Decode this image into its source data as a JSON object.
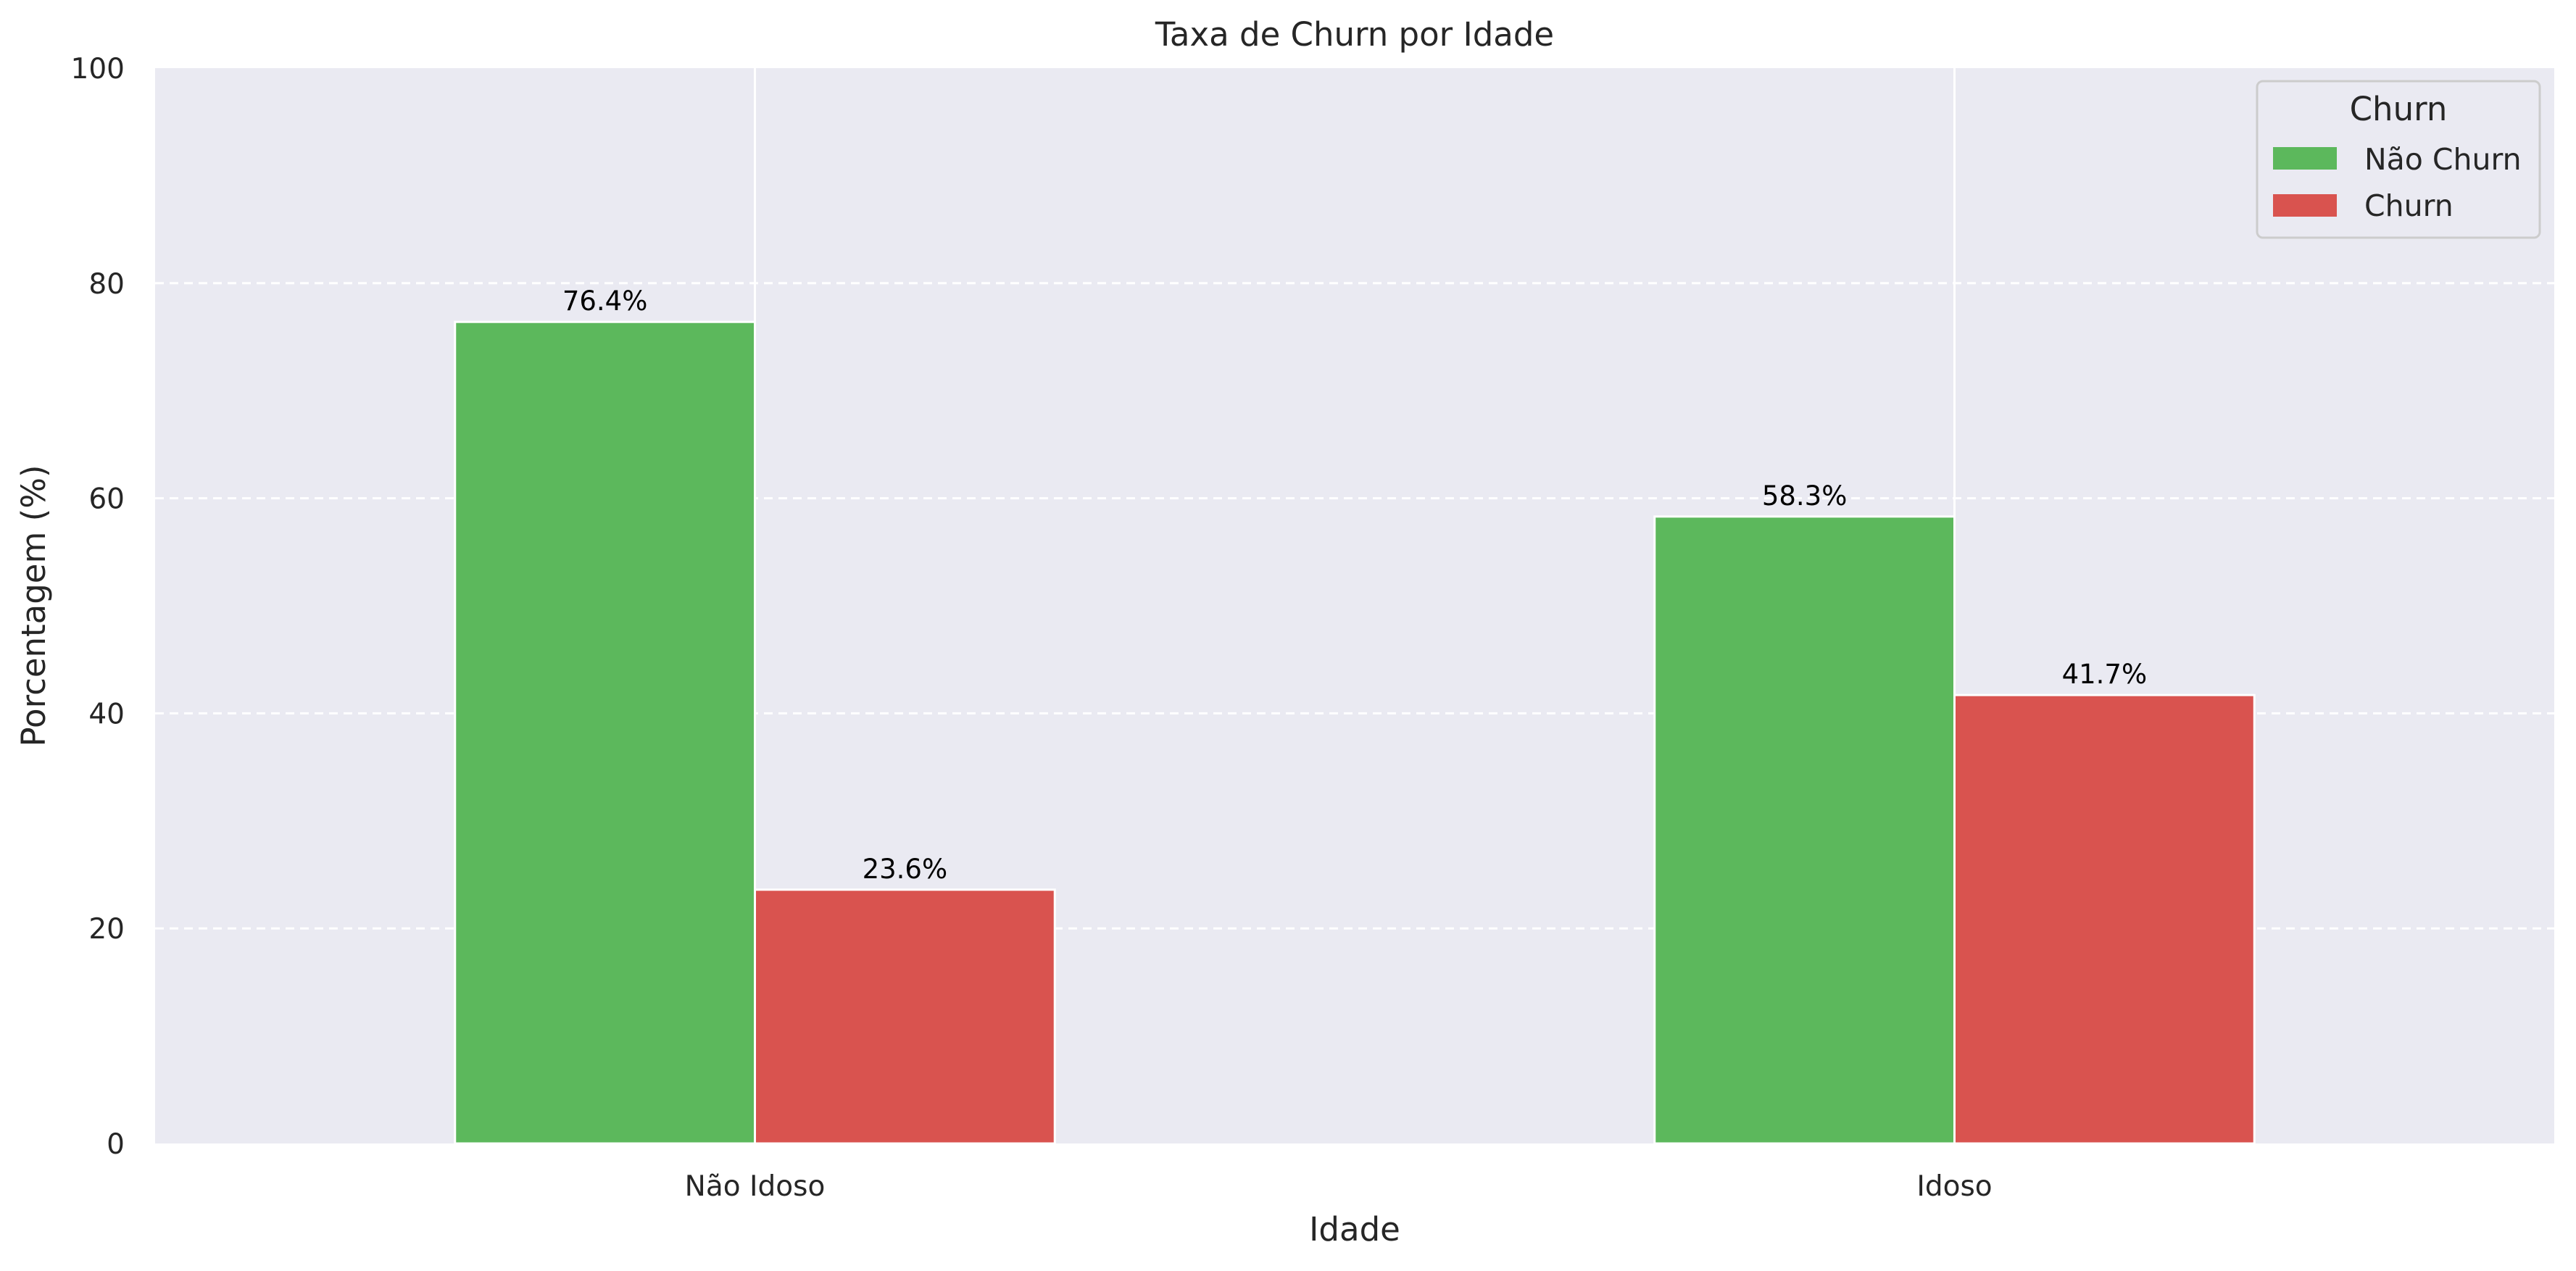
{
  "chart_data": {
    "type": "bar",
    "title": "Taxa de Churn por Idade",
    "xlabel": "Idade",
    "ylabel": "Porcentagem (%)",
    "categories": [
      "Não Idoso",
      "Idoso"
    ],
    "series": [
      {
        "name": "Não Churn",
        "values": [
          76.4,
          58.3
        ],
        "labels": [
          "76.4%",
          "58.3%"
        ],
        "color": "#5cb85c"
      },
      {
        "name": "Churn",
        "values": [
          23.6,
          41.7
        ],
        "labels": [
          "23.6%",
          "41.7%"
        ],
        "color": "#d9534f"
      }
    ],
    "ylim": [
      0,
      100
    ],
    "yticks": [
      "0",
      "20",
      "40",
      "60",
      "80",
      "100"
    ],
    "grid": {
      "y": true,
      "y_style": "dashed",
      "x": true
    },
    "legend": {
      "title": "Churn",
      "placement": "top-right"
    },
    "colors": {
      "background": "#eaeaf2",
      "grid": "#ffffff"
    }
  }
}
